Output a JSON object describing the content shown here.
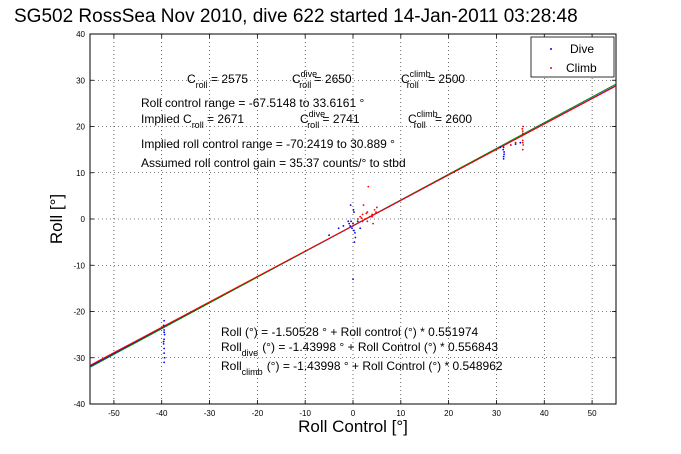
{
  "chart_data": {
    "type": "scatter",
    "title": "SG502 RossSea Nov 2010, dive 622 started 14-Jan-2011 03:28:48",
    "xlabel": "Roll Control [°]",
    "ylabel": "Roll [°]",
    "xlim": [
      -55,
      55
    ],
    "ylim": [
      -40,
      40
    ],
    "xticks": [
      -50,
      -40,
      -30,
      -20,
      -10,
      0,
      10,
      20,
      30,
      40,
      50
    ],
    "yticks": [
      -40,
      -30,
      -20,
      -10,
      0,
      10,
      20,
      30,
      40
    ],
    "grid": true,
    "legend": {
      "position": "top-right",
      "entries": [
        {
          "label": "Dive",
          "color": "#0000ff"
        },
        {
          "label": "Climb",
          "color": "#ff0000"
        }
      ]
    },
    "series": [
      {
        "name": "Dive",
        "color": "#0000ff",
        "points": [
          [
            -39.5,
            -22
          ],
          [
            -39.6,
            -23
          ],
          [
            -39.5,
            -24
          ],
          [
            -39.4,
            -25
          ],
          [
            -39.5,
            -26
          ],
          [
            -39.6,
            -27
          ],
          [
            -39.5,
            -28
          ],
          [
            -39.5,
            -29
          ],
          [
            -39.4,
            -30
          ],
          [
            -39.5,
            -31
          ],
          [
            -39.5,
            -24.5
          ],
          [
            -39.6,
            -26.5
          ],
          [
            -0.8,
            -1
          ],
          [
            -0.6,
            -1.5
          ],
          [
            -0.4,
            -0.5
          ],
          [
            -0.2,
            -2
          ],
          [
            0,
            -1
          ],
          [
            0.2,
            -2.5
          ],
          [
            0.4,
            -3
          ],
          [
            -1,
            -0.5
          ],
          [
            0.1,
            2
          ],
          [
            0.2,
            1.5
          ],
          [
            -0.5,
            3
          ],
          [
            0,
            -13
          ],
          [
            0.3,
            -5
          ],
          [
            0.5,
            -4
          ],
          [
            -5,
            -3.5
          ],
          [
            -3,
            -2
          ],
          [
            -2,
            -1.5
          ],
          [
            1,
            -0.5
          ],
          [
            1.5,
            -2
          ],
          [
            31.5,
            13.5
          ],
          [
            31.6,
            14.5
          ],
          [
            31.4,
            15
          ],
          [
            31.5,
            15.5
          ],
          [
            31.6,
            14
          ],
          [
            31.5,
            13
          ],
          [
            33,
            16
          ],
          [
            34,
            16.2
          ],
          [
            35,
            16.5
          ],
          [
            30.8,
            15.5
          ]
        ]
      },
      {
        "name": "Climb",
        "color": "#ff0000",
        "points": [
          [
            1,
            0
          ],
          [
            1.5,
            0.5
          ],
          [
            2,
            1
          ],
          [
            2.5,
            0
          ],
          [
            3,
            1.5
          ],
          [
            3.5,
            0.5
          ],
          [
            4,
            1
          ],
          [
            4.5,
            2
          ],
          [
            5,
            2.5
          ],
          [
            2,
            -0.5
          ],
          [
            3,
            -0.5
          ],
          [
            4,
            0.5
          ],
          [
            1.8,
            0.2
          ],
          [
            2.8,
            1.2
          ],
          [
            4.8,
            1.5
          ],
          [
            3.2,
            7
          ],
          [
            4.2,
            -1
          ],
          [
            2.2,
            3
          ],
          [
            35.5,
            15
          ],
          [
            35.6,
            16
          ],
          [
            35.5,
            17
          ],
          [
            35.4,
            18
          ],
          [
            35.5,
            19
          ],
          [
            35.6,
            20
          ],
          [
            35.5,
            16.5
          ],
          [
            35.5,
            18.5
          ],
          [
            35.4,
            19.5
          ],
          [
            34,
            16.5
          ],
          [
            33,
            16
          ]
        ]
      }
    ],
    "fit_lines": [
      {
        "name": "Roll",
        "intercept": -1.50528,
        "slope": 0.551974,
        "color": "#0000ff"
      },
      {
        "name": "Roll dive",
        "intercept": -1.43998,
        "slope": 0.556843,
        "color": "#008000"
      },
      {
        "name": "Roll climb",
        "intercept": -1.43998,
        "slope": 0.548962,
        "color": "#ff0000"
      }
    ],
    "annotations": {
      "c_roll_line1": {
        "c_roll": "2575",
        "c_roll_dive": "2650",
        "c_roll_climb": "2500"
      },
      "control_range": "Roll control range = -67.5148 to 33.6161 °",
      "implied_line": {
        "c_roll": "2671",
        "c_roll_dive": "2741",
        "c_roll_climb": "2600"
      },
      "implied_range": "Implied roll control range = -70.2419 to 30.889 °",
      "assumed_gain": "Assumed roll control gain = 35.37 counts/° to stbd",
      "eq_roll": "Roll (°) = -1.50528 ° + Roll control (°) * 0.551974",
      "eq_dive_rest": "(°) = -1.43998 ° + Roll Control (°) * 0.556843",
      "eq_climb_rest": "(°) = -1.43998 ° + Roll Control (°) * 0.548962"
    },
    "labels": {
      "c": "C",
      "roll": "roll",
      "dive": "dive",
      "climb": "climb",
      "implied_prefix": "Implied C",
      "roll_word": "Roll",
      "eq_sep": " = "
    }
  }
}
